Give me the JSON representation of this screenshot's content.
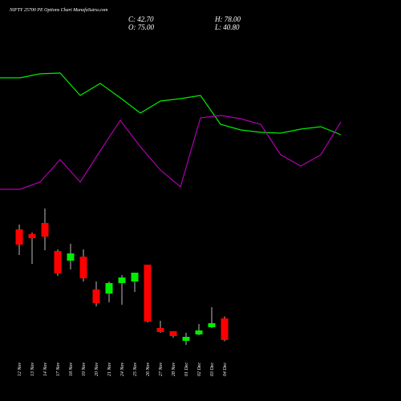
{
  "chart_data": {
    "type": "candlestick",
    "title": "NIFTY 25700 PE Options Chart MunafaSutra.com",
    "stats": {
      "close": "C: 42.70",
      "high": "H: 78.00",
      "open": "O: 75.00",
      "low": "L: 40.80"
    },
    "categories": [
      "12 Nov",
      "13 Nov",
      "14 Nov",
      "17 Nov",
      "18 Nov",
      "19 Nov",
      "20 Nov",
      "21 Nov",
      "24 Nov",
      "25 Nov",
      "26 Nov",
      "27 Nov",
      "28 Nov",
      "01 Dec",
      "02 Dec",
      "03 Dec",
      "04 Dec"
    ],
    "open": [
      208.2,
      201,
      217.8,
      175.8,
      161.4,
      167.4,
      118.2,
      112.2,
      127.8,
      130.2,
      155.4,
      60.6,
      55.8,
      41.4,
      51,
      61.8,
      75
    ],
    "high": [
      215.4,
      203.4,
      239.4,
      178.2,
      186.6,
      178.2,
      130.2,
      130.2,
      139.8,
      143.4,
      155.4,
      71.4,
      55.8,
      53.4,
      66.6,
      91.8,
      78
    ],
    "low": [
      169.8,
      156.6,
      177,
      138.6,
      148.2,
      130.2,
      93,
      99,
      95.4,
      114.6,
      69,
      53.4,
      46.2,
      35.4,
      49.8,
      60.6,
      40.8
    ],
    "close": [
      185.4,
      195,
      197.4,
      142.2,
      172.2,
      135,
      97.8,
      127.8,
      136.2,
      143.4,
      70.2,
      54.6,
      48.6,
      47.4,
      57,
      67.8,
      42.7
    ],
    "up_color": "#00ee00",
    "down_color": "#ff0000",
    "ylim": [
      23.4,
      251.4
    ],
    "y2lim": [
      0,
      100
    ],
    "series": [
      {
        "color": "#00ee00",
        "axis": "y2",
        "values": [
          81.5,
          84,
          84.5,
          70.5,
          78,
          69,
          59.5,
          67,
          68.5,
          70.5,
          52.5,
          49,
          47.5,
          47,
          49.5,
          51,
          46
        ]
      },
      {
        "color": "#b000b0",
        "axis": "y2",
        "values": [
          12,
          16.5,
          30.5,
          16.5,
          36,
          55,
          38.5,
          24,
          13.5,
          56.5,
          58,
          56,
          52.5,
          33.5,
          26.5,
          33.5,
          54
        ]
      }
    ]
  }
}
